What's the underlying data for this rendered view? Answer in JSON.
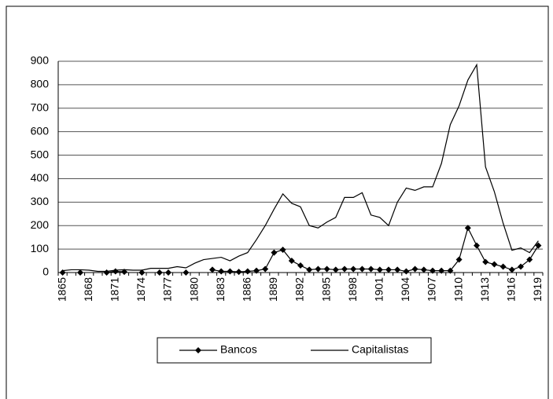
{
  "chart_data": {
    "type": "line",
    "categories": [
      "1865",
      null,
      null,
      "1868",
      null,
      null,
      "1871",
      null,
      null,
      "1874",
      null,
      null,
      "1877",
      null,
      null,
      "1880",
      null,
      null,
      "1883",
      null,
      null,
      "1886",
      null,
      null,
      "1889",
      null,
      null,
      "1892",
      null,
      null,
      "1895",
      null,
      null,
      "1898",
      null,
      null,
      "1901",
      null,
      null,
      "1904",
      null,
      null,
      "1907",
      null,
      null,
      "1910",
      null,
      null,
      "1913",
      null,
      null,
      "1916",
      null,
      null,
      "1919"
    ],
    "series": [
      {
        "name": "Bancos",
        "color": "#000000",
        "marker": "diamond",
        "values": [
          0,
          null,
          0,
          null,
          null,
          0,
          5,
          3,
          null,
          0,
          null,
          0,
          0,
          null,
          0,
          null,
          null,
          12,
          5,
          5,
          3,
          5,
          8,
          15,
          85,
          97,
          50,
          30,
          12,
          15,
          15,
          12,
          15,
          15,
          15,
          15,
          12,
          12,
          12,
          5,
          15,
          12,
          8,
          8,
          8,
          55,
          190,
          115,
          45,
          35,
          25,
          12,
          25,
          55,
          115
        ]
      },
      {
        "name": "Capitalistas",
        "color": "#000000",
        "marker": "none",
        "values": [
          8,
          12,
          12,
          10,
          5,
          5,
          10,
          12,
          10,
          10,
          18,
          18,
          18,
          25,
          20,
          40,
          55,
          60,
          65,
          50,
          70,
          85,
          140,
          200,
          270,
          335,
          295,
          280,
          200,
          190,
          215,
          235,
          320,
          320,
          340,
          245,
          235,
          200,
          300,
          360,
          350,
          365,
          365,
          465,
          630,
          710,
          820,
          885,
          450,
          345,
          210,
          95,
          105,
          85,
          135
        ]
      }
    ],
    "ylim": [
      0,
      900
    ],
    "yticks": [
      0,
      100,
      200,
      300,
      400,
      500,
      600,
      700,
      800,
      900
    ],
    "grid": true,
    "legend": "bottom"
  }
}
